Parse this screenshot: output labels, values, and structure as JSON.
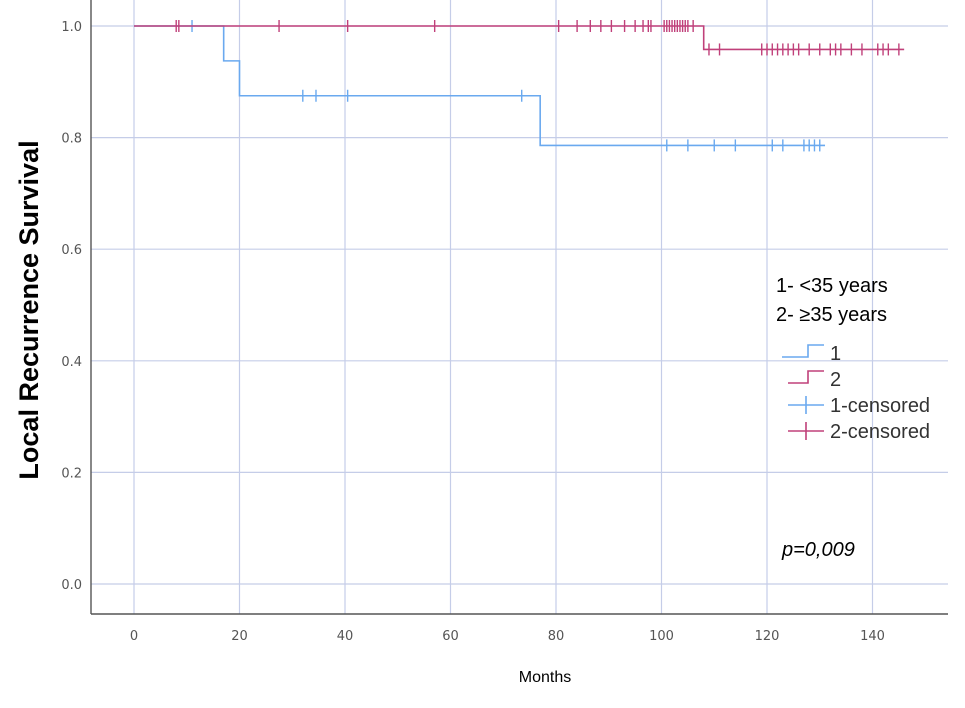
{
  "chart_data": {
    "type": "line",
    "subtype": "kaplan-meier",
    "title": "",
    "xlabel": "Months",
    "ylabel": "Local Recurrence Survival",
    "xlim": [
      -8,
      155
    ],
    "ylim": [
      -0.05,
      1.05
    ],
    "xticks": [
      0,
      20,
      40,
      60,
      80,
      100,
      120,
      140
    ],
    "yticks": [
      0.0,
      0.2,
      0.4,
      0.6,
      0.8,
      1.0
    ],
    "ytick_labels": [
      "0.0",
      "0.2",
      "0.4",
      "0.6",
      "0.8",
      "1.0"
    ],
    "grid": true,
    "series": [
      {
        "name": "1",
        "color": "#6aa9ef",
        "steps": [
          [
            0,
            1.0
          ],
          [
            17,
            0.9375
          ],
          [
            20,
            0.875
          ],
          [
            77,
            0.786
          ],
          [
            131,
            0.786
          ]
        ],
        "censored": [
          11,
          32,
          34.5,
          40.5,
          73.5,
          101,
          105,
          110,
          114,
          121,
          123,
          127,
          128,
          129,
          130
        ]
      },
      {
        "name": "2",
        "color": "#c0407a",
        "steps": [
          [
            0,
            1.0
          ],
          [
            108,
            1.0
          ],
          [
            108,
            0.958
          ],
          [
            146,
            0.958
          ]
        ],
        "censored": [
          8,
          8.5,
          27.5,
          40.5,
          57,
          80.5,
          84,
          86.5,
          88.5,
          90.5,
          93,
          95,
          96.5,
          97.5,
          98,
          100.5,
          101,
          101.5,
          102,
          102.5,
          103,
          103.5,
          104,
          104.5,
          105,
          106,
          109,
          111,
          119,
          120,
          121,
          122,
          123,
          124,
          125,
          126,
          128,
          130,
          132,
          133,
          134,
          136,
          138,
          141,
          142,
          143,
          145
        ]
      }
    ],
    "legend": {
      "placement": "right",
      "notes": [
        "1- <35 years",
        "2- ≥35 years"
      ],
      "entries": [
        "1",
        "2",
        "1-censored",
        "2-censored"
      ]
    },
    "annotation": "p=0,009"
  }
}
